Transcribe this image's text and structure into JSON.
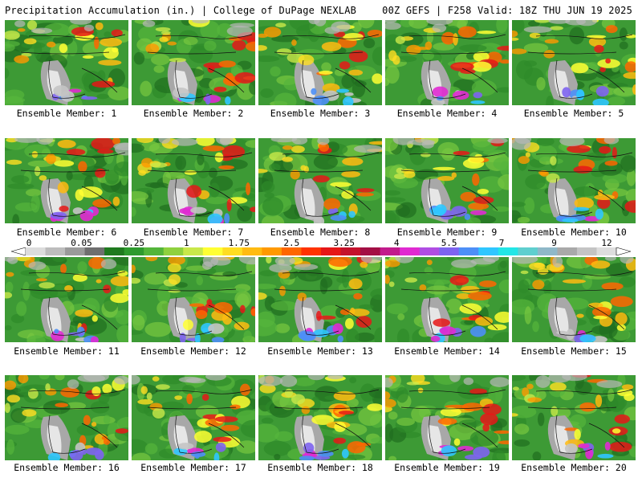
{
  "header": {
    "left": "Precipitation Accumulation (in.) | College of DuPage NEXLAB",
    "right": "00Z GEFS | F258 Valid: 18Z THU JUN 19 2025"
  },
  "members": [
    "Ensemble Member: 1",
    "Ensemble Member: 2",
    "Ensemble Member: 3",
    "Ensemble Member: 4",
    "Ensemble Member: 5",
    "Ensemble Member: 6",
    "Ensemble Member: 7",
    "Ensemble Member: 8",
    "Ensemble Member: 9",
    "Ensemble Member: 10",
    "Ensemble Member: 11",
    "Ensemble Member: 12",
    "Ensemble Member: 13",
    "Ensemble Member: 14",
    "Ensemble Member: 15",
    "Ensemble Member: 16",
    "Ensemble Member: 17",
    "Ensemble Member: 18",
    "Ensemble Member: 19",
    "Ensemble Member: 20"
  ],
  "colorbar": {
    "labels": [
      "0",
      "0.05",
      "0.25",
      "1",
      "1.75",
      "2.5",
      "3.25",
      "4",
      "5.5",
      "7",
      "9",
      "12"
    ],
    "colors": [
      "#dcdcdc",
      "#bdbdbd",
      "#9a9a9a",
      "#6f6f6f",
      "#1f7a1f",
      "#2e9a2e",
      "#53b53a",
      "#8fd13e",
      "#c9e84a",
      "#ffff33",
      "#ffdd22",
      "#ffbb11",
      "#ff9900",
      "#ff6600",
      "#ff3300",
      "#e61717",
      "#c4122c",
      "#a30f45",
      "#c21b8c",
      "#e02ad1",
      "#b04de3",
      "#7e64f0",
      "#4d8ff7",
      "#2fc6ff",
      "#22e6e6",
      "#5fcfcf",
      "#8fb8c8",
      "#a9a9a9",
      "#c4c4c4",
      "#dddddd"
    ]
  }
}
